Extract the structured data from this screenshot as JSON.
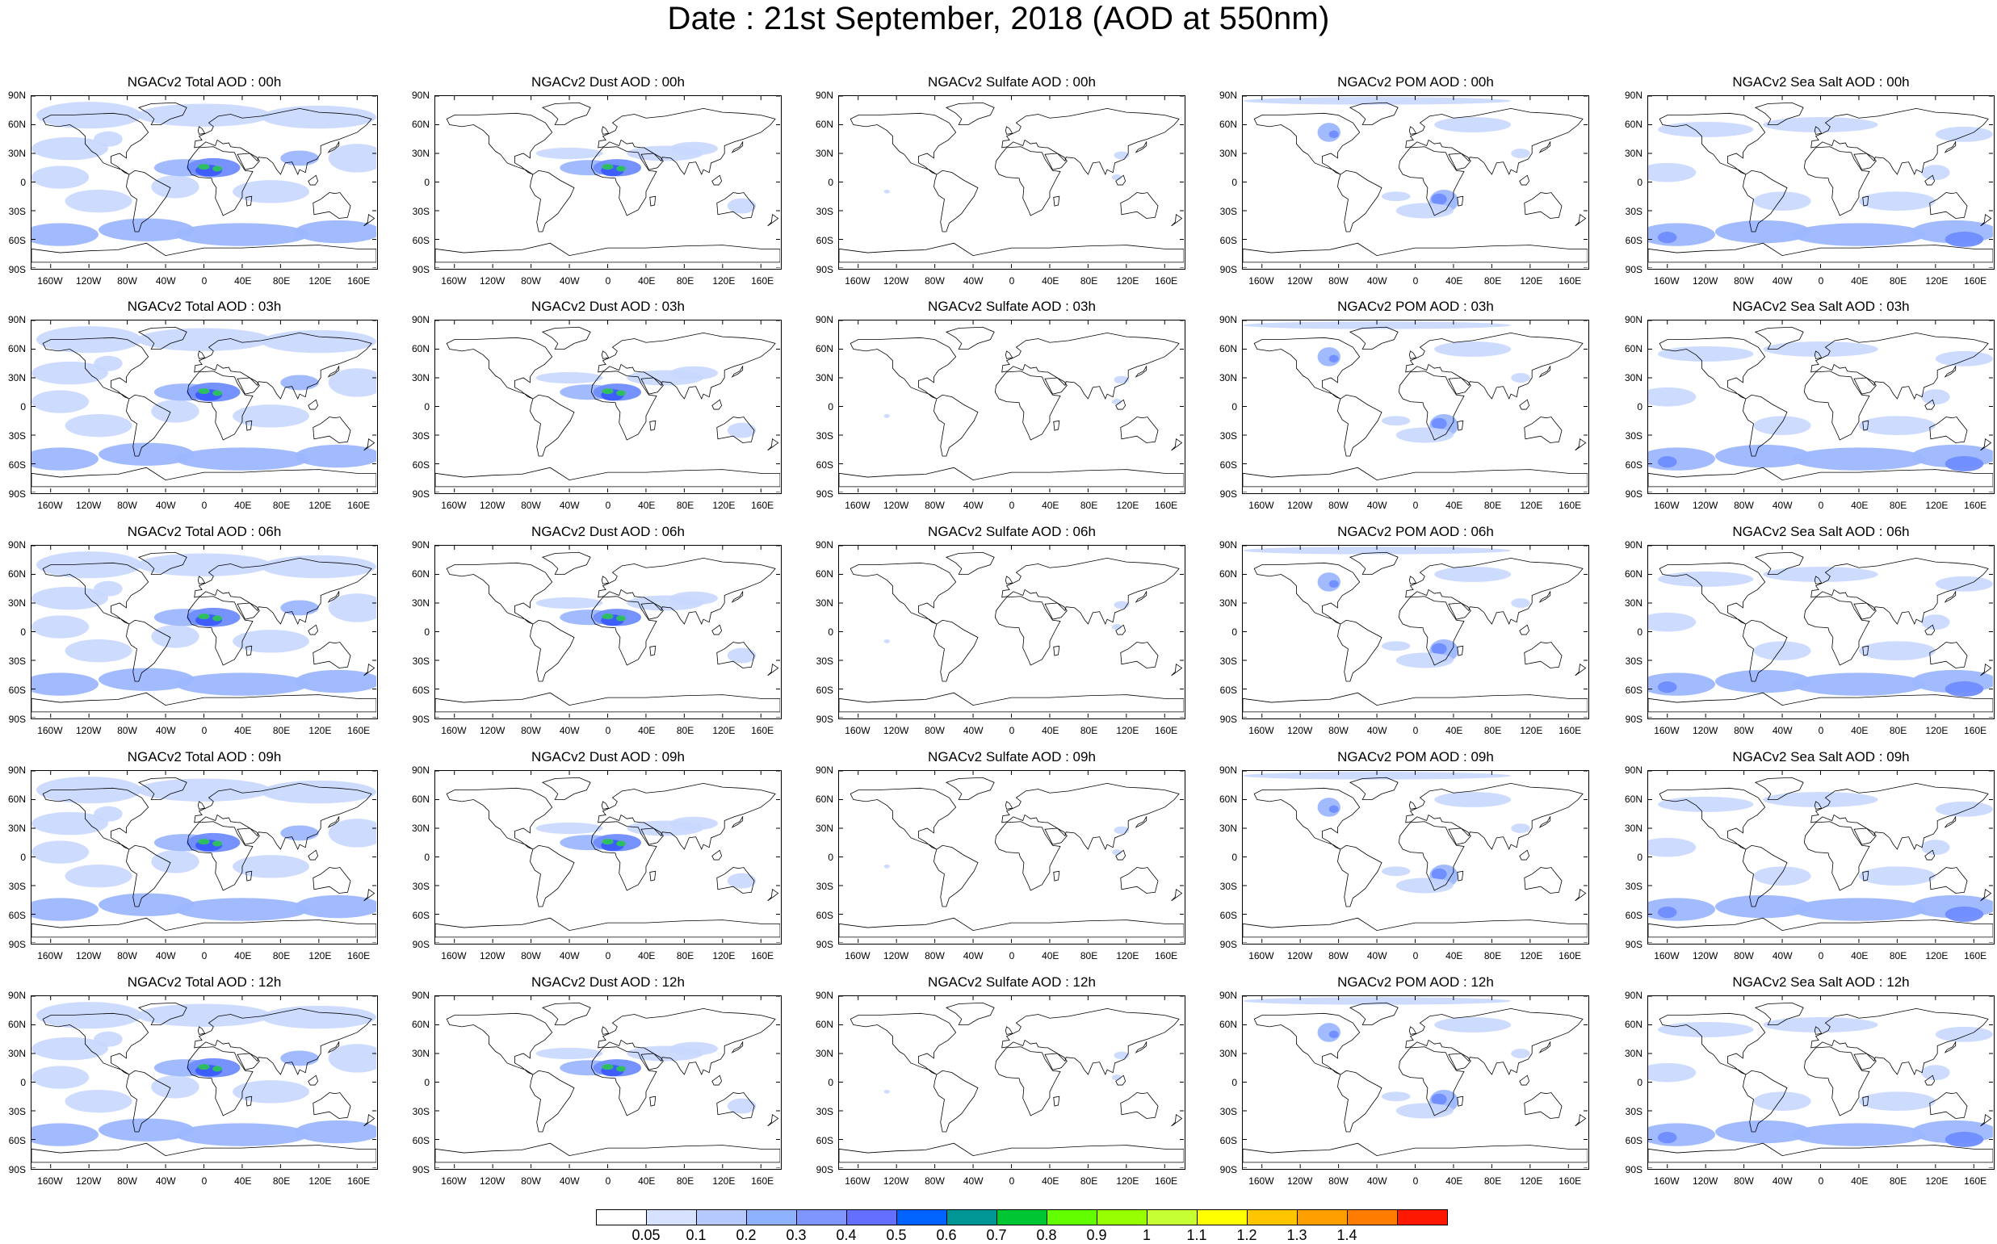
{
  "title": "Date : 21st September, 2018 (AOD at 550nm)",
  "columns": [
    {
      "id": "total",
      "theme": "total"
    },
    {
      "id": "dust",
      "theme": "dust"
    },
    {
      "id": "sulfate",
      "theme": "sulfate"
    },
    {
      "id": "pom",
      "theme": "pom"
    },
    {
      "id": "seasalt",
      "theme": "seasalt"
    }
  ],
  "panel_titles": [
    [
      "NGACv2 Total AOD : 00h",
      "NGACv2 Dust AOD : 00h",
      "NGACv2 Sulfate AOD : 00h",
      "NGACv2 POM AOD : 00h",
      "NGACv2 Sea Salt AOD : 00h"
    ],
    [
      "NGACv2 Total AOD : 03h",
      "NGACv2 Dust AOD : 03h",
      "NGACv2 Sulfate AOD : 03h",
      "NGACv2 POM AOD : 03h",
      "NGACv2 Sea Salt AOD : 03h"
    ],
    [
      "NGACv2 Total AOD : 06h",
      "NGACv2 Dust AOD : 06h",
      "NGACv2 Sulfate AOD : 06h",
      "NGACv2 POM AOD : 06h",
      "NGACv2 Sea Salt AOD : 06h"
    ],
    [
      "NGACv2 Total AOD : 09h",
      "NGACv2 Dust AOD : 09h",
      "NGACv2 Sulfate AOD : 09h",
      "NGACv2 POM AOD : 09h",
      "NGACv2 Sea Salt  AOD : 09h"
    ],
    [
      "NGACv2 Total AOD  : 12h",
      "NGACv2 Dust AOD : 12h",
      "NGACv2 Sulfate AOD : 12h",
      "NGACv2 POM  AOD : 12h",
      "NGACv2 Sea Salt AOD : 12h"
    ]
  ],
  "lat_ticks": [
    "90N",
    "60N",
    "30N",
    "0",
    "30S",
    "60S",
    "90S"
  ],
  "lon_ticks": [
    "160W",
    "120W",
    "80W",
    "40W",
    "0",
    "40E",
    "80E",
    "120E",
    "160E"
  ],
  "lon_tick_values": [
    -160,
    -120,
    -80,
    -40,
    0,
    40,
    80,
    120,
    160
  ],
  "lat_tick_values": [
    90,
    60,
    30,
    0,
    -30,
    -60,
    -90
  ],
  "colorbar": {
    "labels": [
      "0.05",
      "0.1",
      "0.2",
      "0.3",
      "0.4",
      "0.5",
      "0.6",
      "0.7",
      "0.8",
      "0.9",
      "1",
      "1.1",
      "1.2",
      "1.3",
      "1.4"
    ],
    "colors": [
      "#ffffff",
      "#d6e2ff",
      "#b5c9ff",
      "#8eb2ff",
      "#7f96ff",
      "#6370ff",
      "#0063ff",
      "#009696",
      "#00c633",
      "#63ff00",
      "#96ff00",
      "#c6ff33",
      "#ffff00",
      "#ffc600",
      "#ffa000",
      "#ff7c00",
      "#ff1900"
    ]
  },
  "theme_colors": {
    "light": "#c8d7ff",
    "mid": "#9db7ff",
    "strong": "#6f8cff",
    "deep": "#3b5bff",
    "green": "#2ec25c",
    "yellow": "#e9ff2a"
  }
}
